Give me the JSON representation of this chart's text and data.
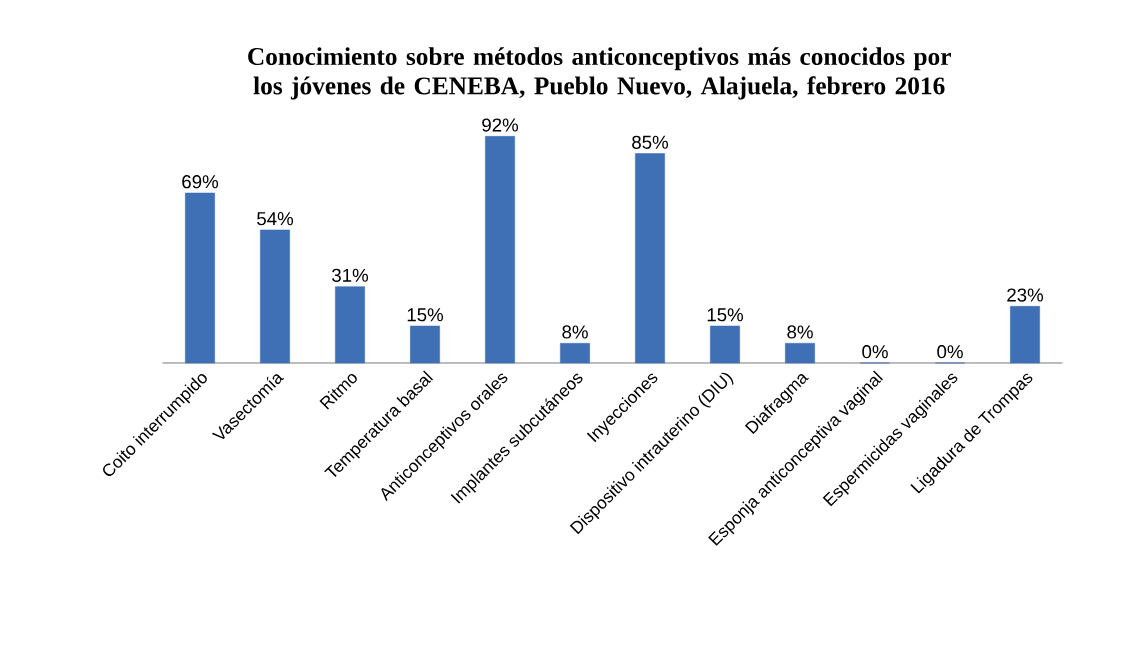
{
  "chart_data": {
    "type": "bar",
    "title": "Conocimiento sobre métodos anticonceptivos  más conocidos por los jóvenes de CENEBA, Pueblo Nuevo, Alajuela, febrero 2016",
    "categories": [
      "Coito interrumpido",
      "Vasectomía",
      "Ritmo",
      "Temperatura basal",
      "Anticonceptivos orales",
      "Implantes subcutáneos",
      "Inyecciones",
      "Dispositivo intrauterino (DIU)",
      "Diafragma",
      "Esponja anticonceptiva vaginal",
      "Espermicidas vaginales",
      "Ligadura de Trompas"
    ],
    "values": [
      69,
      54,
      31,
      15,
      92,
      8,
      85,
      15,
      8,
      0,
      0,
      23
    ],
    "value_labels": [
      "69%",
      "54%",
      "31%",
      "15%",
      "92%",
      "8%",
      "85%",
      "15%",
      "8%",
      "0%",
      "0%",
      "23%"
    ],
    "color": "#3f6fb5"
  }
}
